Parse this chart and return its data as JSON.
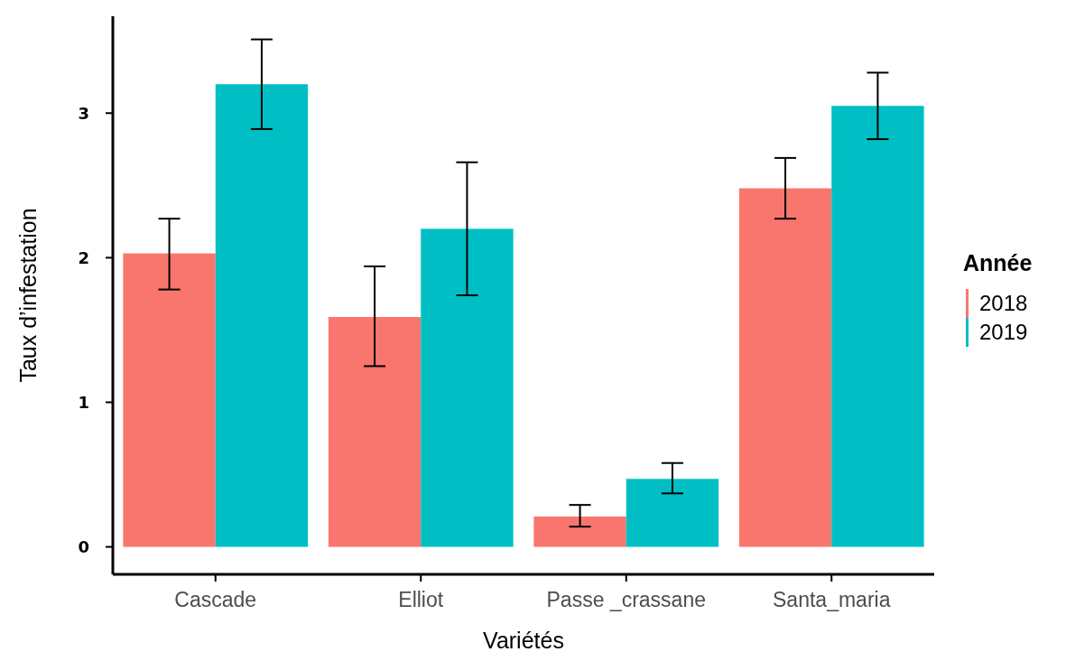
{
  "chart_data": {
    "type": "bar",
    "xlabel": "Variétés",
    "ylabel": "Taux d’infestation",
    "legend_title": "Année",
    "categories": [
      "Cascade",
      "Elliot",
      "Passe _crassane",
      "Santa_maria"
    ],
    "series": [
      {
        "name": "2018",
        "color": "#f8766d",
        "values": [
          2.03,
          1.59,
          0.21,
          2.48
        ],
        "errors": [
          [
            1.78,
            2.27
          ],
          [
            1.25,
            1.94
          ],
          [
            0.14,
            0.29
          ],
          [
            2.27,
            2.69
          ]
        ]
      },
      {
        "name": "2019",
        "color": "#00bfc4",
        "values": [
          3.2,
          2.2,
          0.47,
          3.05
        ],
        "errors": [
          [
            2.89,
            3.51
          ],
          [
            1.74,
            2.66
          ],
          [
            0.37,
            0.58
          ],
          [
            2.82,
            3.28
          ]
        ]
      }
    ],
    "ylim": [
      -0.19,
      3.67
    ],
    "yticks": [
      0,
      1,
      2,
      3
    ],
    "grid": false,
    "legend": "right"
  }
}
